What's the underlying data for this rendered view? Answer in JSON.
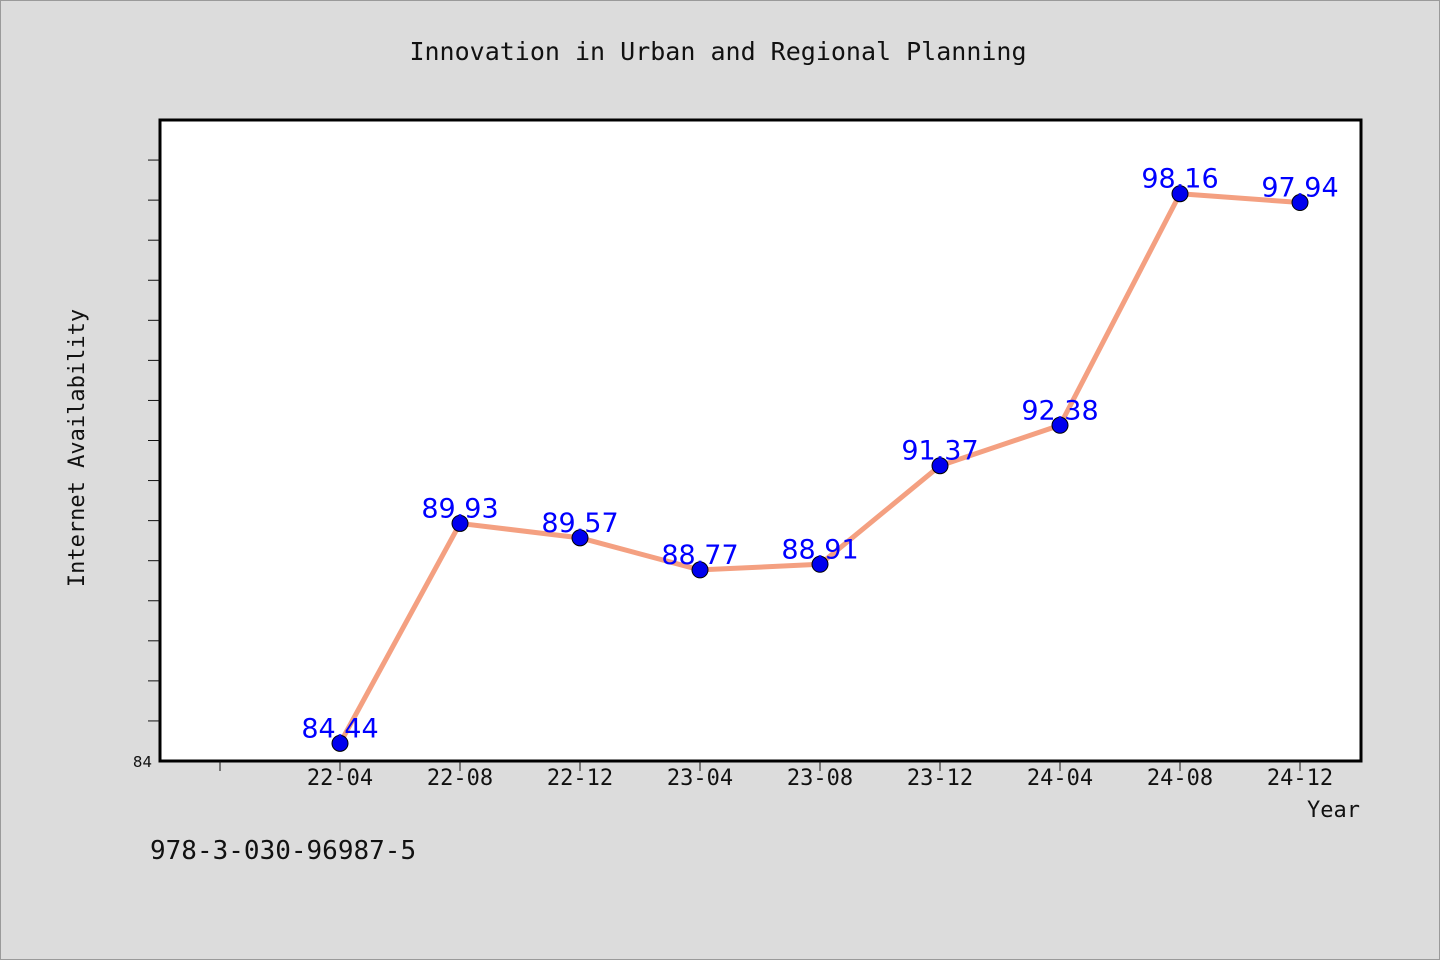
{
  "chart_data": {
    "type": "line",
    "title": "Innovation in Urban and Regional Planning",
    "xlabel": "Year",
    "ylabel": "Internet Availability",
    "categories": [
      "22-04",
      "22-08",
      "22-12",
      "23-04",
      "23-08",
      "23-12",
      "24-04",
      "24-08",
      "24-12"
    ],
    "series": [
      {
        "values": [
          84.44,
          89.93,
          89.57,
          88.77,
          88.91,
          91.37,
          92.38,
          98.16,
          97.94
        ],
        "data_labels": [
          "84.44",
          "89.93",
          "89.57",
          "88.77",
          "88.91",
          "91.37",
          "92.38",
          "98.16",
          "97.94"
        ],
        "line_color": "#f4a081",
        "marker_color": "#0000ee"
      }
    ],
    "y_tick_labels": [
      "84"
    ],
    "ylim": [
      84,
      100
    ],
    "grid": false,
    "label_color": "#0000ff"
  },
  "footer": {
    "isbn": "978-3-030-96987-5"
  }
}
